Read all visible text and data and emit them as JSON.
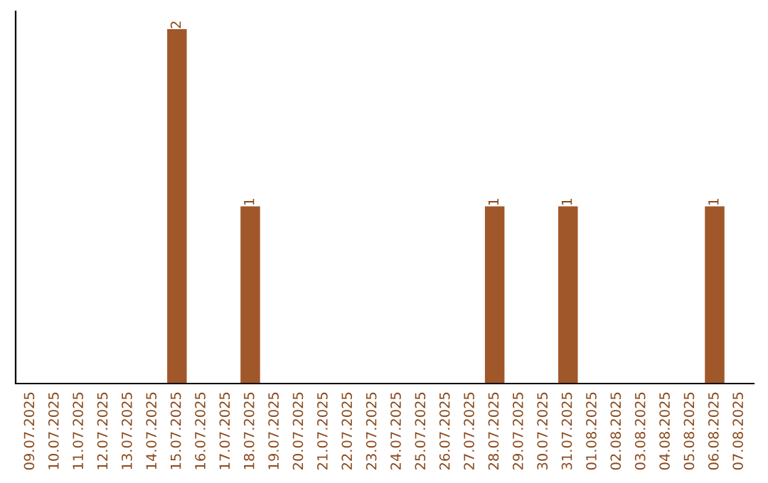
{
  "chart_data": {
    "type": "bar",
    "categories": [
      "09.07.2025",
      "10.07.2025",
      "11.07.2025",
      "12.07.2025",
      "13.07.2025",
      "14.07.2025",
      "15.07.2025",
      "16.07.2025",
      "17.07.2025",
      "18.07.2025",
      "19.07.2025",
      "20.07.2025",
      "21.07.2025",
      "22.07.2025",
      "23.07.2025",
      "24.07.2025",
      "25.07.2025",
      "26.07.2025",
      "27.07.2025",
      "28.07.2025",
      "29.07.2025",
      "30.07.2025",
      "31.07.2025",
      "01.08.2025",
      "02.08.2025",
      "03.08.2025",
      "04.08.2025",
      "05.08.2025",
      "06.08.2025",
      "07.08.2025"
    ],
    "values": [
      0,
      0,
      0,
      0,
      0,
      0,
      2,
      0,
      0,
      1,
      0,
      0,
      0,
      0,
      0,
      0,
      0,
      0,
      0,
      1,
      0,
      0,
      1,
      0,
      0,
      0,
      0,
      0,
      1,
      0
    ],
    "value_labels": [
      null,
      null,
      null,
      null,
      null,
      null,
      "2",
      null,
      null,
      "1",
      null,
      null,
      null,
      null,
      null,
      null,
      null,
      null,
      null,
      "1",
      null,
      null,
      "1",
      null,
      null,
      null,
      null,
      null,
      "1",
      null
    ],
    "color": "#a0572a",
    "ylim": [
      0,
      2.1
    ],
    "tick_labels": "x",
    "grid": false,
    "legend": false
  }
}
